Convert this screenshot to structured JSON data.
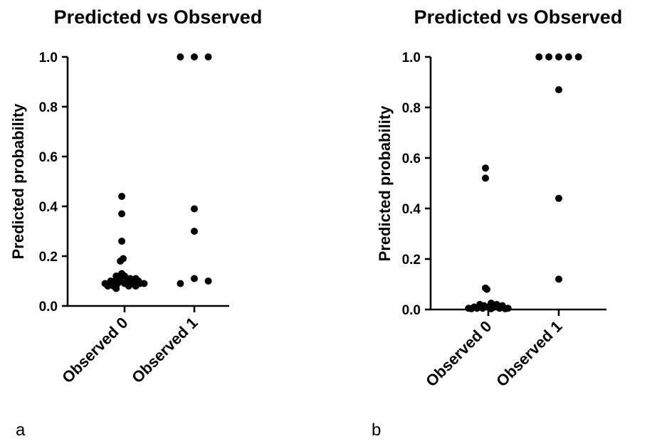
{
  "chart_data": [
    {
      "type": "scatter",
      "panel_label": "a",
      "title": "Predicted vs Observed",
      "xlabel": "",
      "ylabel": "Predicted probability",
      "categories": [
        "Observed 0",
        "Observed 1"
      ],
      "ylim": [
        0,
        1.0
      ],
      "yticks": [
        "0.0",
        "0.2",
        "0.4",
        "0.6",
        "0.8",
        "1.0"
      ],
      "grid": false,
      "points": [
        {
          "category": "Observed 0",
          "jitter": -0.04,
          "y": 0.44
        },
        {
          "category": "Observed 0",
          "jitter": -0.04,
          "y": 0.37
        },
        {
          "category": "Observed 0",
          "jitter": -0.04,
          "y": 0.26
        },
        {
          "category": "Observed 0",
          "jitter": -0.06,
          "y": 0.18
        },
        {
          "category": "Observed 0",
          "jitter": -0.02,
          "y": 0.19
        },
        {
          "category": "Observed 0",
          "jitter": -0.04,
          "y": 0.13
        },
        {
          "category": "Observed 0",
          "jitter": -0.12,
          "y": 0.12
        },
        {
          "category": "Observed 0",
          "jitter": -0.08,
          "y": 0.12
        },
        {
          "category": "Observed 0",
          "jitter": 0.0,
          "y": 0.12
        },
        {
          "category": "Observed 0",
          "jitter": 0.08,
          "y": 0.11
        },
        {
          "category": "Observed 0",
          "jitter": 0.16,
          "y": 0.11
        },
        {
          "category": "Observed 0",
          "jitter": -0.2,
          "y": 0.1
        },
        {
          "category": "Observed 0",
          "jitter": -0.14,
          "y": 0.1
        },
        {
          "category": "Observed 0",
          "jitter": -0.06,
          "y": 0.1
        },
        {
          "category": "Observed 0",
          "jitter": 0.04,
          "y": 0.1
        },
        {
          "category": "Observed 0",
          "jitter": 0.12,
          "y": 0.1
        },
        {
          "category": "Observed 0",
          "jitter": 0.2,
          "y": 0.1
        },
        {
          "category": "Observed 0",
          "jitter": -0.28,
          "y": 0.09
        },
        {
          "category": "Observed 0",
          "jitter": -0.22,
          "y": 0.09
        },
        {
          "category": "Observed 0",
          "jitter": -0.1,
          "y": 0.09
        },
        {
          "category": "Observed 0",
          "jitter": 0.0,
          "y": 0.09
        },
        {
          "category": "Observed 0",
          "jitter": 0.1,
          "y": 0.09
        },
        {
          "category": "Observed 0",
          "jitter": 0.22,
          "y": 0.09
        },
        {
          "category": "Observed 0",
          "jitter": 0.28,
          "y": 0.09
        },
        {
          "category": "Observed 0",
          "jitter": -0.24,
          "y": 0.08
        },
        {
          "category": "Observed 0",
          "jitter": -0.16,
          "y": 0.08
        },
        {
          "category": "Observed 0",
          "jitter": 0.06,
          "y": 0.08
        },
        {
          "category": "Observed 0",
          "jitter": 0.16,
          "y": 0.08
        },
        {
          "category": "Observed 0",
          "jitter": -0.12,
          "y": 0.07
        },
        {
          "category": "Observed 1",
          "jitter": -0.2,
          "y": 1.0
        },
        {
          "category": "Observed 1",
          "jitter": 0.0,
          "y": 1.0
        },
        {
          "category": "Observed 1",
          "jitter": 0.2,
          "y": 1.0
        },
        {
          "category": "Observed 1",
          "jitter": 0.0,
          "y": 0.39
        },
        {
          "category": "Observed 1",
          "jitter": 0.0,
          "y": 0.3
        },
        {
          "category": "Observed 1",
          "jitter": 0.0,
          "y": 0.11
        },
        {
          "category": "Observed 1",
          "jitter": 0.2,
          "y": 0.1
        },
        {
          "category": "Observed 1",
          "jitter": -0.2,
          "y": 0.09
        }
      ]
    },
    {
      "type": "scatter",
      "panel_label": "b",
      "title": "Predicted vs Observed",
      "xlabel": "",
      "ylabel": "Predicted probability",
      "categories": [
        "Observed 0",
        "Observed 1"
      ],
      "ylim": [
        0,
        1.0
      ],
      "yticks": [
        "0.0",
        "0.2",
        "0.4",
        "0.6",
        "0.8",
        "1.0"
      ],
      "grid": false,
      "points": [
        {
          "category": "Observed 0",
          "jitter": -0.04,
          "y": 0.56
        },
        {
          "category": "Observed 0",
          "jitter": -0.04,
          "y": 0.52
        },
        {
          "category": "Observed 0",
          "jitter": -0.04,
          "y": 0.085
        },
        {
          "category": "Observed 0",
          "jitter": -0.02,
          "y": 0.08
        },
        {
          "category": "Observed 0",
          "jitter": 0.04,
          "y": 0.025
        },
        {
          "category": "Observed 0",
          "jitter": -0.12,
          "y": 0.02
        },
        {
          "category": "Observed 0",
          "jitter": 0.12,
          "y": 0.02
        },
        {
          "category": "Observed 0",
          "jitter": -0.06,
          "y": 0.015
        },
        {
          "category": "Observed 0",
          "jitter": 0.2,
          "y": 0.015
        },
        {
          "category": "Observed 0",
          "jitter": -0.2,
          "y": 0.01
        },
        {
          "category": "Observed 0",
          "jitter": 0.0,
          "y": 0.01
        },
        {
          "category": "Observed 0",
          "jitter": 0.08,
          "y": 0.01
        },
        {
          "category": "Observed 0",
          "jitter": -0.16,
          "y": 0.005
        },
        {
          "category": "Observed 0",
          "jitter": 0.28,
          "y": 0.005
        },
        {
          "category": "Observed 0",
          "jitter": -0.28,
          "y": 0.005
        },
        {
          "category": "Observed 0",
          "jitter": 0.16,
          "y": 0.005
        },
        {
          "category": "Observed 0",
          "jitter": -0.08,
          "y": 0.005
        },
        {
          "category": "Observed 0",
          "jitter": 0.24,
          "y": 0.003
        },
        {
          "category": "Observed 0",
          "jitter": -0.24,
          "y": 0.003
        },
        {
          "category": "Observed 0",
          "jitter": 0.04,
          "y": 0.003
        },
        {
          "category": "Observed 1",
          "jitter": -0.28,
          "y": 1.0
        },
        {
          "category": "Observed 1",
          "jitter": -0.14,
          "y": 1.0
        },
        {
          "category": "Observed 1",
          "jitter": 0.0,
          "y": 1.0
        },
        {
          "category": "Observed 1",
          "jitter": 0.14,
          "y": 1.0
        },
        {
          "category": "Observed 1",
          "jitter": 0.28,
          "y": 1.0
        },
        {
          "category": "Observed 1",
          "jitter": 0.0,
          "y": 0.87
        },
        {
          "category": "Observed 1",
          "jitter": 0.0,
          "y": 0.44
        },
        {
          "category": "Observed 1",
          "jitter": 0.0,
          "y": 0.12
        }
      ]
    }
  ]
}
